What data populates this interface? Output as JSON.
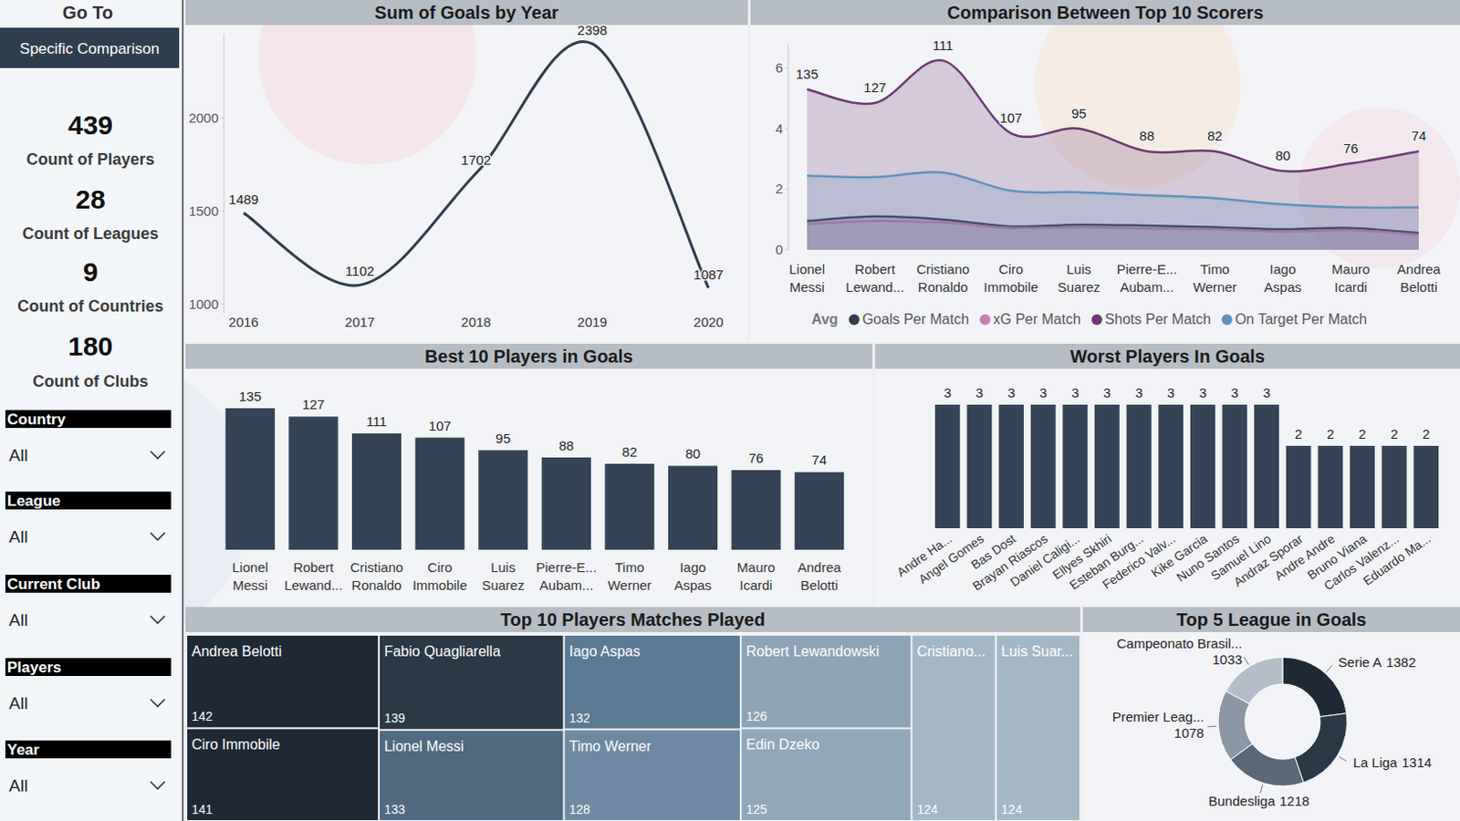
{
  "sidebar": {
    "nav_label": "Go To",
    "button": "Specific Comparison",
    "kpis": [
      {
        "value": 439,
        "label": "Count of Players"
      },
      {
        "value": 28,
        "label": "Count of Leagues"
      },
      {
        "value": 9,
        "label": "Count of Countries"
      },
      {
        "value": 180,
        "label": "Count of Clubs"
      }
    ],
    "slicers": [
      {
        "label": "Country",
        "value": "All"
      },
      {
        "label": "League",
        "value": "All"
      },
      {
        "label": "Current Club",
        "value": "All"
      },
      {
        "label": "Players",
        "value": "All"
      },
      {
        "label": "Year",
        "value": "All"
      }
    ]
  },
  "chart_data": [
    {
      "type": "line",
      "title": "Sum of Goals by Year",
      "categories": [
        "2016",
        "2017",
        "2018",
        "2019",
        "2020"
      ],
      "values": [
        1489,
        1102,
        1702,
        2398,
        1087
      ],
      "color": "#2f3d4f",
      "ylim": [
        950,
        2450
      ],
      "yticks": [
        1000,
        1500,
        2000
      ],
      "data_labels": true,
      "grid": false
    },
    {
      "type": "area",
      "title": "Comparison Between Top 10 Scorers",
      "categories": [
        "Lionel Messi",
        "Robert Lewand...",
        "Cristiano Ronaldo",
        "Ciro Immobile",
        "Luis Suarez",
        "Pierre-E... Aubam...",
        "Timo Werner",
        "Iago Aspas",
        "Mauro Icardi",
        "Andrea Belotti"
      ],
      "legend_title": "Avg",
      "legend": "bottom",
      "grid": false,
      "ylim": [
        0,
        6.8
      ],
      "yticks": [
        0,
        2,
        4,
        6
      ],
      "goals": [
        135,
        127,
        111,
        107,
        95,
        88,
        82,
        80,
        76,
        74
      ],
      "series": [
        {
          "name": "Goals Per Match",
          "color": "#2f3d4f",
          "values": [
            0.95,
            1.1,
            1.0,
            0.77,
            0.83,
            0.8,
            0.75,
            0.68,
            0.72,
            0.55
          ]
        },
        {
          "name": "xG Per Match",
          "color": "#c57fb3",
          "values": [
            0.85,
            0.95,
            0.9,
            0.72,
            0.75,
            0.7,
            0.68,
            0.6,
            0.65,
            0.5
          ]
        },
        {
          "name": "Shots Per Match",
          "color": "#6b3a70",
          "values": [
            5.3,
            4.85,
            6.25,
            3.85,
            4.0,
            3.25,
            3.25,
            2.6,
            2.85,
            3.25
          ]
        },
        {
          "name": "On Target Per Match",
          "color": "#5f93bd",
          "values": [
            2.45,
            2.4,
            2.55,
            1.95,
            1.9,
            1.8,
            1.7,
            1.5,
            1.4,
            1.4
          ]
        }
      ]
    },
    {
      "type": "bar",
      "title": "Best 10 Players in Goals",
      "categories": [
        "Lionel Messi",
        "Robert Lewand...",
        "Cristiano Ronaldo",
        "Ciro Immobile",
        "Luis Suarez",
        "Pierre-E... Aubam...",
        "Timo Werner",
        "Iago Aspas",
        "Mauro Icardi",
        "Andrea Belotti"
      ],
      "values": [
        135,
        127,
        111,
        107,
        95,
        88,
        82,
        80,
        76,
        74
      ],
      "color": "#344456",
      "ylim": [
        0,
        135
      ],
      "data_labels": true,
      "tick_labels": "x",
      "grid": false
    },
    {
      "type": "bar",
      "title": "Worst Players In Goals",
      "categories": [
        "Andre Ha...",
        "Angel Gomes",
        "Bas Dost",
        "Brayan Riascos",
        "Daniel Caligi...",
        "Ellyes Skhiri",
        "Esteban Burg...",
        "Federico Valv...",
        "Kike Garcia",
        "Nuno Santos",
        "Samuel Lino",
        "Andraz Sporar",
        "Andre Andre",
        "Bruno Viana",
        "Carlos Valenz...",
        "Eduardo Ma..."
      ],
      "values": [
        3,
        3,
        3,
        3,
        3,
        3,
        3,
        3,
        3,
        3,
        3,
        2,
        2,
        2,
        2,
        2
      ],
      "color": "#344456",
      "ylim": [
        0,
        3
      ],
      "data_labels": true,
      "tick_labels": "x",
      "grid": false
    },
    {
      "type": "treemap",
      "title": "Top 10 Players Matches Played",
      "categories": [
        "Andrea Belotti",
        "Ciro Immobile",
        "Fabio Quagliarella",
        "Lionel Messi",
        "Iago Aspas",
        "Timo Werner",
        "Robert Lewandowski",
        "Edin Dzeko",
        "Cristiano...",
        "Luis Suar..."
      ],
      "values": [
        142,
        141,
        139,
        133,
        132,
        128,
        126,
        125,
        124,
        124
      ],
      "colors": [
        "#1f2935",
        "#1f2935",
        "#2b3846",
        "#4f6a81",
        "#5a7a94",
        "#6d8aa2",
        "#8da4b7",
        "#91a8ba",
        "#a4b7c6",
        "#a4b7c6"
      ],
      "data_labels": true
    },
    {
      "type": "donut",
      "title": "Top 5 League in Goals",
      "categories": [
        "Serie A",
        "La Liga",
        "Bundesliga",
        "Premier Leag...",
        "Campeonato Brasil..."
      ],
      "values": [
        1382,
        1314,
        1218,
        1078,
        1033
      ],
      "colors": [
        "#1f2935",
        "#2b3846",
        "#5a6878",
        "#8b97a4",
        "#b5bec8"
      ],
      "data_labels": true
    }
  ]
}
